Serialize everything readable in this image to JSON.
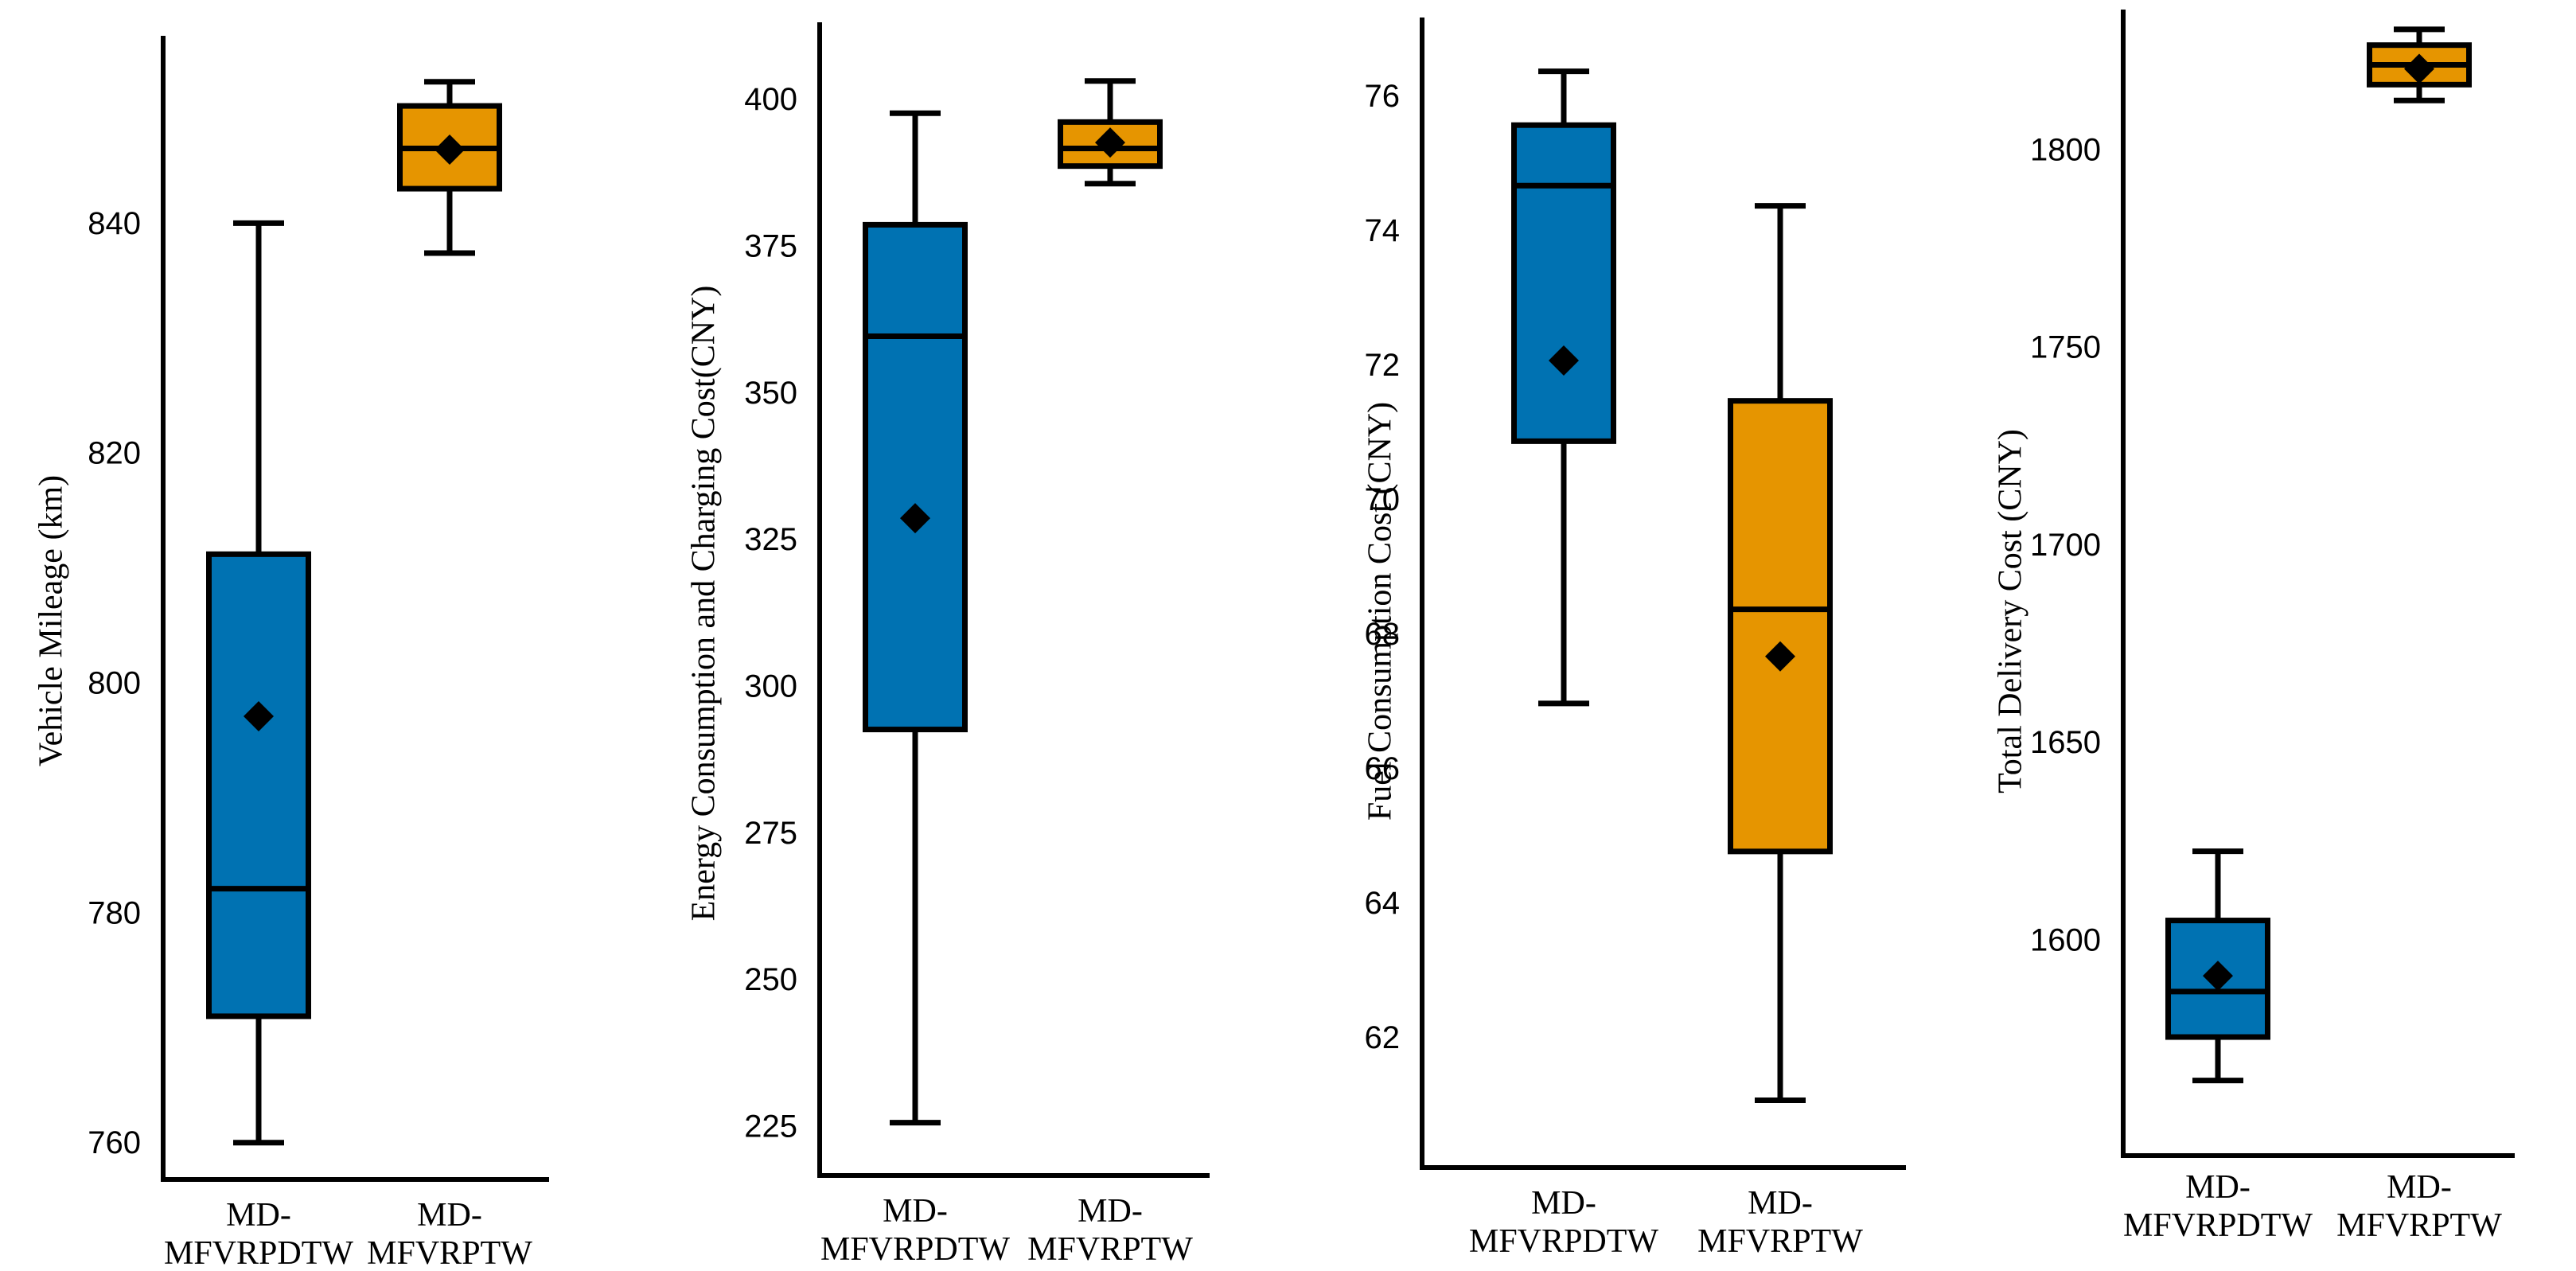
{
  "chart_data": [
    {
      "type": "box",
      "ylabel": "Vehicle Mileage (km)",
      "yticks": [
        760,
        780,
        800,
        820,
        840
      ],
      "ylim": [
        757,
        856.5
      ],
      "categories": [
        {
          "lines": [
            "MD-",
            "MFVRPDTW"
          ],
          "color": "#0072B2",
          "whisker_low": 760.2,
          "q1": 771.2,
          "median": 782.3,
          "q3": 811.4,
          "whisker_high": 840.2,
          "mean": 797.3
        },
        {
          "lines": [
            "MD-",
            "MFVRPTW"
          ],
          "color": "#E69500",
          "whisker_low": 837.6,
          "q1": 843.2,
          "median": 846.7,
          "q3": 850.4,
          "whisker_high": 852.5,
          "mean": 846.6
        }
      ]
    },
    {
      "type": "box",
      "ylabel": "Energy Consumption and Charging Cost(CNY)",
      "yticks": [
        225,
        250,
        275,
        300,
        325,
        350,
        375,
        400
      ],
      "ylim": [
        217,
        413.5
      ],
      "categories": [
        {
          "lines": [
            "MD-",
            "MFVRPDTW"
          ],
          "color": "#0072B2",
          "whisker_low": 226,
          "q1": 293,
          "median": 360,
          "q3": 379,
          "whisker_high": 398,
          "mean": 329
        },
        {
          "lines": [
            "MD-",
            "MFVRPTW"
          ],
          "color": "#E69500",
          "whisker_low": 386,
          "q1": 389,
          "median": 392,
          "q3": 396.5,
          "whisker_high": 403.5,
          "mean": 393
        }
      ]
    },
    {
      "type": "box",
      "ylabel": "Fuel Consumption Cost (CNY)",
      "yticks": [
        62,
        64,
        66,
        68,
        70,
        72,
        74,
        76
      ],
      "ylim": [
        60.1,
        77.2
      ],
      "categories": [
        {
          "lines": [
            "MD-",
            "MFVRPDTW"
          ],
          "color": "#0072B2",
          "whisker_low": 67.0,
          "q1": 70.9,
          "median": 74.7,
          "q3": 75.6,
          "whisker_high": 76.4,
          "mean": 72.1
        },
        {
          "lines": [
            "MD-",
            "MFVRPTW"
          ],
          "color": "#E69500",
          "whisker_low": 61.1,
          "q1": 64.8,
          "median": 68.4,
          "q3": 71.5,
          "whisker_high": 74.4,
          "mean": 67.7
        }
      ]
    },
    {
      "type": "box",
      "ylabel": "Total Delivery Cost (CNY)",
      "yticks": [
        1600,
        1650,
        1700,
        1750,
        1800
      ],
      "ylim": [
        1546,
        1836
      ],
      "categories": [
        {
          "lines": [
            "MD-",
            "MFVRPDTW"
          ],
          "color": "#0072B2",
          "whisker_low": 1565,
          "q1": 1576,
          "median": 1587.5,
          "q3": 1605.5,
          "whisker_high": 1623,
          "mean": 1591.5
        },
        {
          "lines": [
            "MD-",
            "MFVRPTW"
          ],
          "color": "#E69500",
          "whisker_low": 1813,
          "q1": 1817,
          "median": 1822,
          "q3": 1827,
          "whisker_high": 1831,
          "mean": 1821
        }
      ]
    }
  ]
}
